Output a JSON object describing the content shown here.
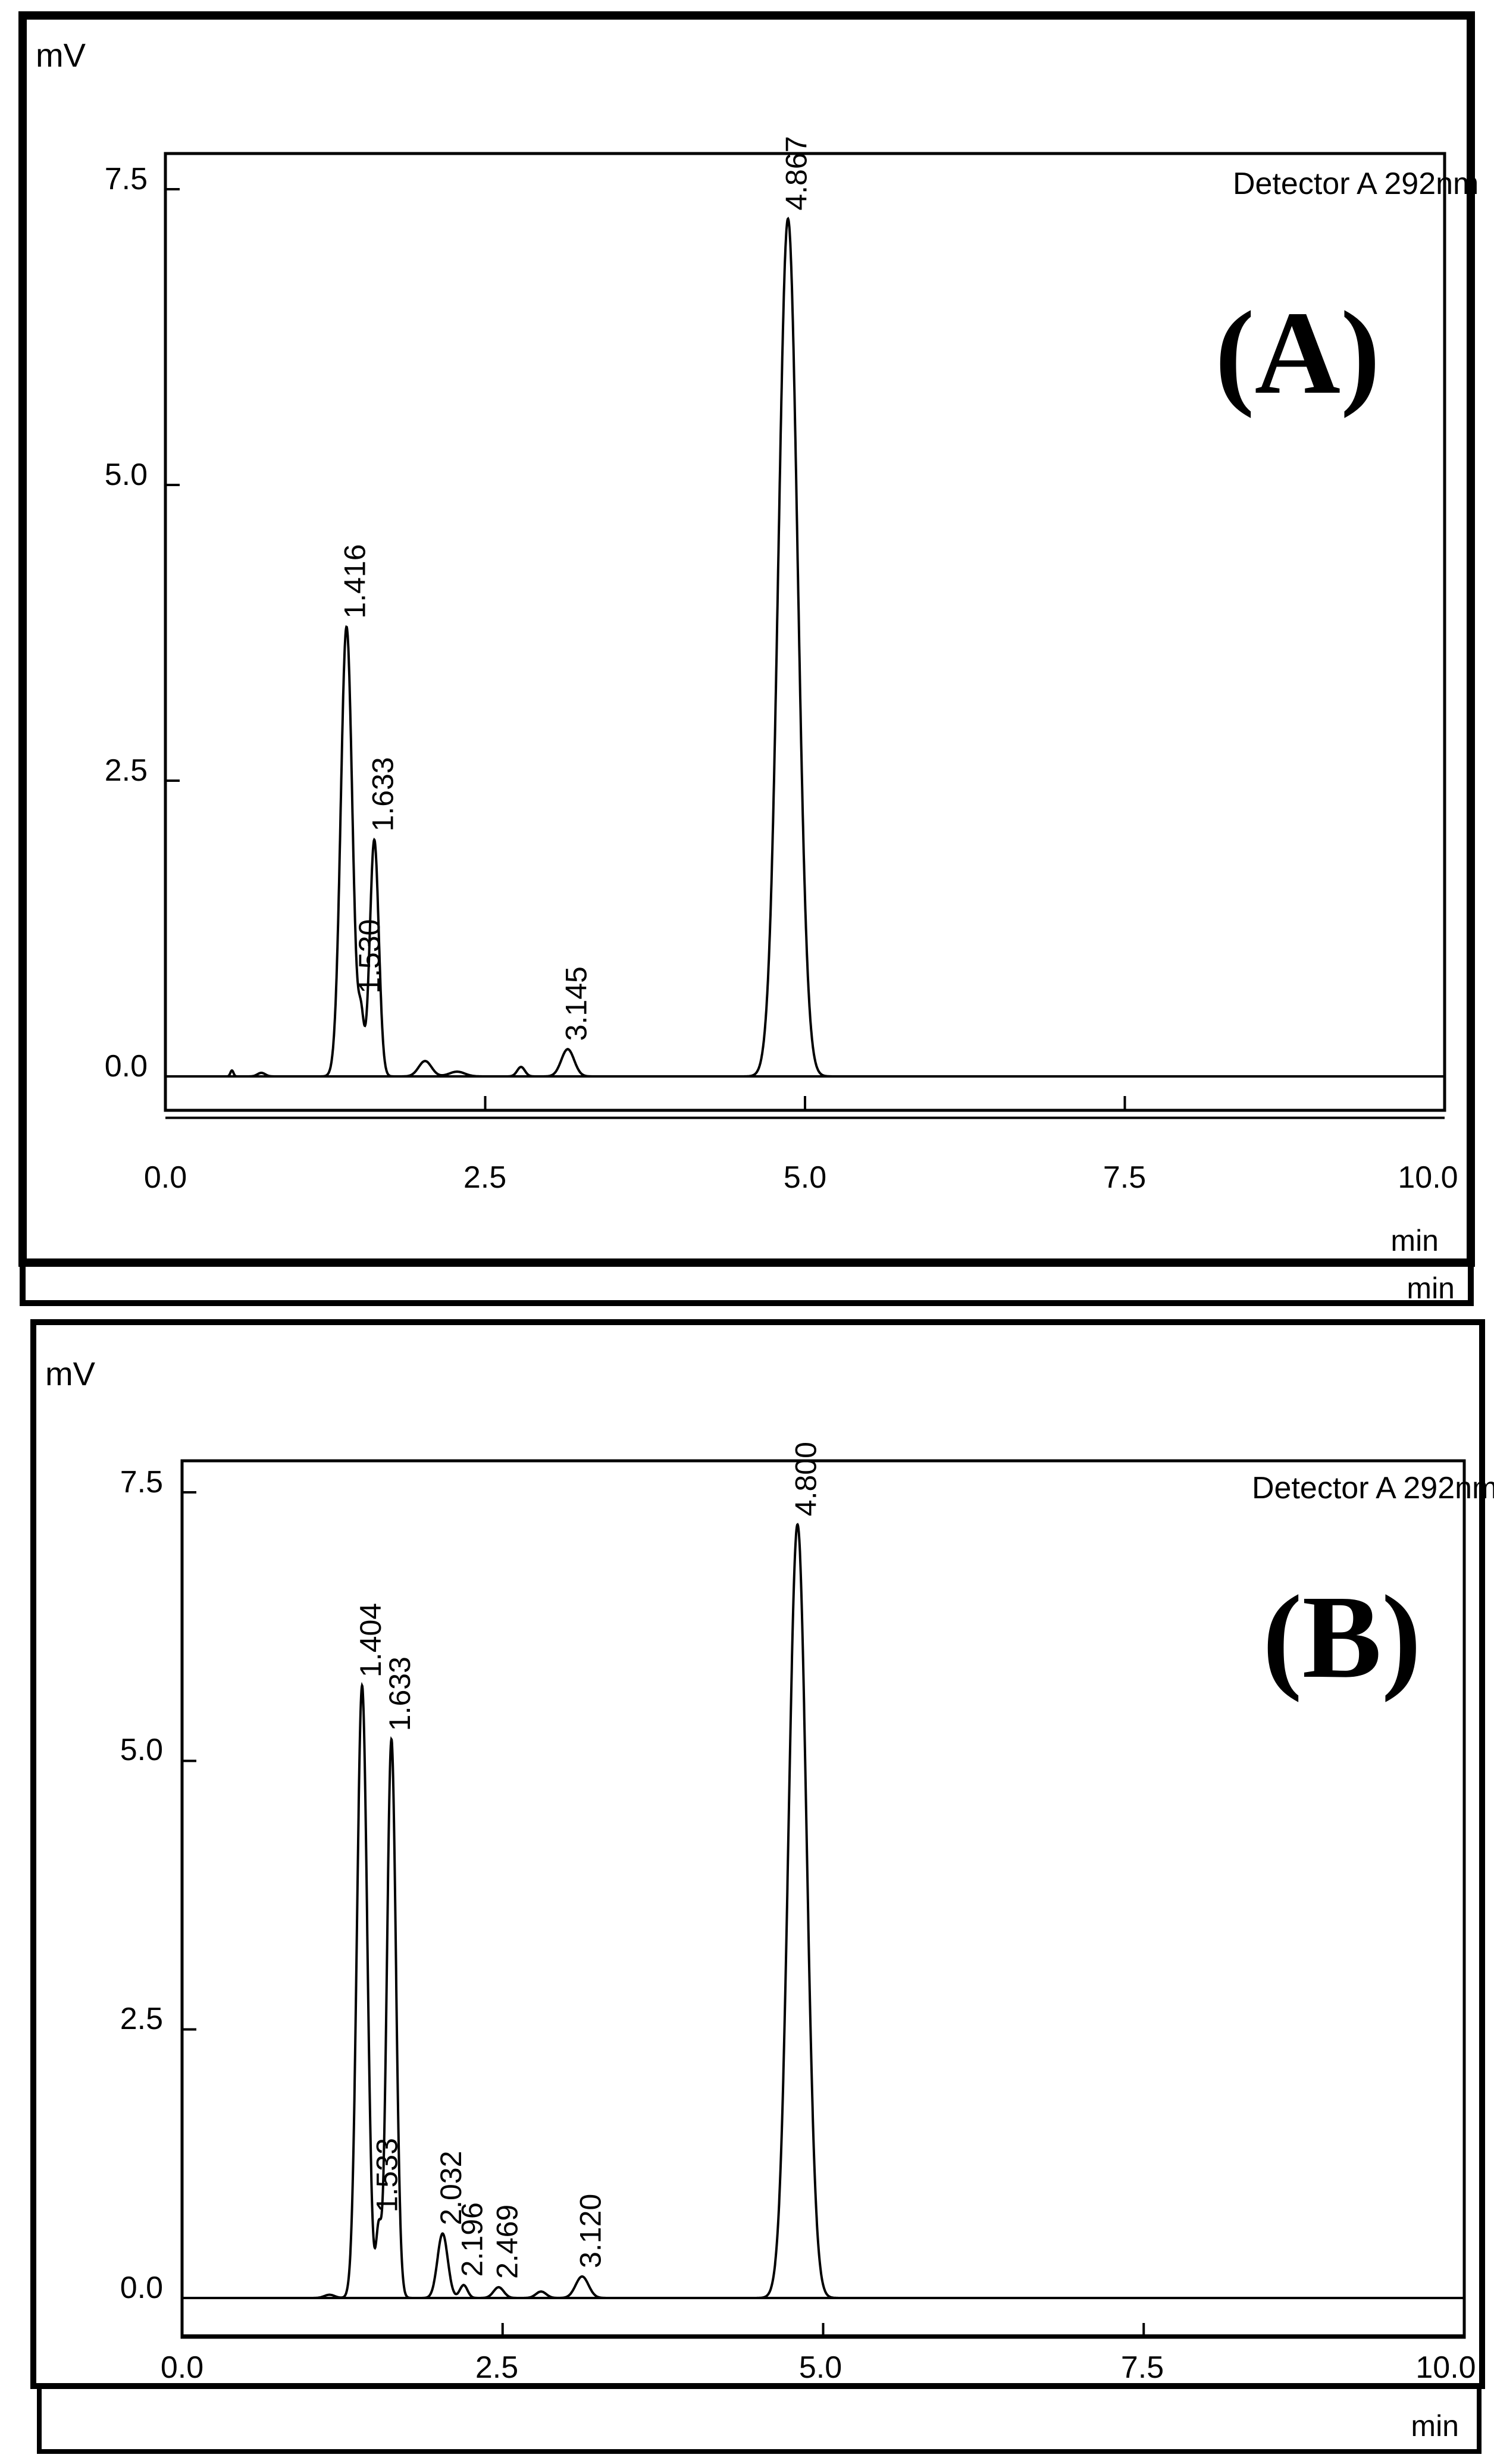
{
  "chart_data": [
    {
      "type": "line",
      "panel_label": "(A)",
      "ylabel": "mV",
      "xlabel": "min",
      "xlabel_extra": "min",
      "detector": "Detector A 292nm",
      "xlim": [
        0,
        10
      ],
      "ylim": [
        -0.4,
        7.7
      ],
      "xticks": [
        "0.0",
        "2.5",
        "5.0",
        "7.5",
        "10.0"
      ],
      "yticks": [
        "0.0",
        "2.5",
        "5.0",
        "7.5"
      ],
      "xtick_values": [
        0,
        2.5,
        5.0,
        7.5,
        10.0
      ],
      "ytick_values": [
        0,
        2.5,
        5.0,
        7.5
      ],
      "baseline": 0.0,
      "trace_start": 0.0,
      "trace_end": 10.0,
      "peaks": [
        {
          "rt": 0.52,
          "height": 0.05,
          "width": 0.012,
          "label": ""
        },
        {
          "rt": 0.75,
          "height": 0.03,
          "width": 0.03,
          "label": ""
        },
        {
          "rt": 1.416,
          "height": 3.8,
          "width": 0.045,
          "label": "1.416"
        },
        {
          "rt": 1.53,
          "height": 0.45,
          "width": 0.022,
          "label": "1.530"
        },
        {
          "rt": 1.633,
          "height": 2.0,
          "width": 0.035,
          "label": "1.633"
        },
        {
          "rt": 2.03,
          "height": 0.13,
          "width": 0.05,
          "label": ""
        },
        {
          "rt": 2.28,
          "height": 0.04,
          "width": 0.06,
          "label": ""
        },
        {
          "rt": 2.78,
          "height": 0.08,
          "width": 0.03,
          "label": ""
        },
        {
          "rt": 3.145,
          "height": 0.23,
          "width": 0.05,
          "label": "3.145"
        },
        {
          "rt": 4.867,
          "height": 7.25,
          "width": 0.075,
          "label": "4.867"
        }
      ]
    },
    {
      "type": "line",
      "panel_label": "(B)",
      "ylabel": "mV",
      "xlabel": "min",
      "detector": "Detector A 292nm",
      "xlim": [
        0,
        10
      ],
      "ylim": [
        -0.4,
        7.7
      ],
      "xticks": [
        "0.0",
        "2.5",
        "5.0",
        "7.5",
        "10.0"
      ],
      "yticks": [
        "0.0",
        "2.5",
        "5.0",
        "7.5"
      ],
      "xtick_values": [
        0,
        2.5,
        5.0,
        7.5,
        10.0
      ],
      "ytick_values": [
        0,
        2.5,
        5.0,
        7.5
      ],
      "baseline": 0.0,
      "trace_start": 0.85,
      "trace_end": 10.0,
      "peaks": [
        {
          "rt": 1.15,
          "height": 0.03,
          "width": 0.04,
          "label": ""
        },
        {
          "rt": 1.404,
          "height": 5.7,
          "width": 0.04,
          "label": "1.404"
        },
        {
          "rt": 1.533,
          "height": 0.6,
          "width": 0.02,
          "label": "1.533"
        },
        {
          "rt": 1.633,
          "height": 5.2,
          "width": 0.035,
          "label": "1.633"
        },
        {
          "rt": 2.032,
          "height": 0.6,
          "width": 0.04,
          "label": "2.032"
        },
        {
          "rt": 2.196,
          "height": 0.12,
          "width": 0.03,
          "label": "2.196"
        },
        {
          "rt": 2.469,
          "height": 0.1,
          "width": 0.04,
          "label": "2.469"
        },
        {
          "rt": 2.8,
          "height": 0.06,
          "width": 0.04,
          "label": ""
        },
        {
          "rt": 3.12,
          "height": 0.2,
          "width": 0.05,
          "label": "3.120"
        },
        {
          "rt": 4.8,
          "height": 7.2,
          "width": 0.07,
          "label": "4.800"
        }
      ]
    }
  ]
}
